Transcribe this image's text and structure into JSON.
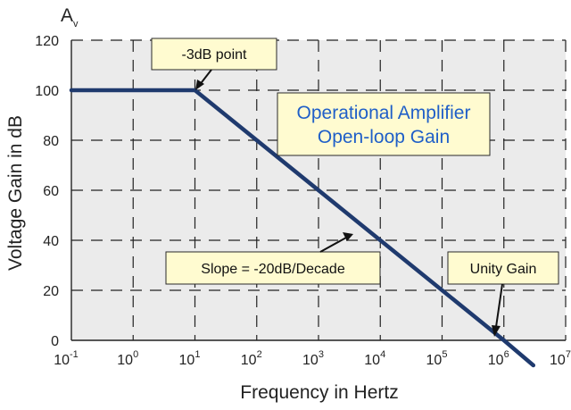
{
  "chart_data": {
    "type": "line",
    "title": "",
    "xlabel": "Frequency in Hertz",
    "ylabel": "Voltage Gain in dB",
    "y_symbol": "A",
    "y_symbol_sub": "v",
    "xscale": "log",
    "x_ticks": [
      {
        "base": "10",
        "exp": "-1"
      },
      {
        "base": "10",
        "exp": "0"
      },
      {
        "base": "10",
        "exp": "1"
      },
      {
        "base": "10",
        "exp": "2"
      },
      {
        "base": "10",
        "exp": "3"
      },
      {
        "base": "10",
        "exp": "4"
      },
      {
        "base": "10",
        "exp": "5"
      },
      {
        "base": "10",
        "exp": "6"
      },
      {
        "base": "10",
        "exp": "7"
      }
    ],
    "y_ticks": [
      "0",
      "20",
      "40",
      "60",
      "80",
      "100",
      "120"
    ],
    "xlim": [
      0.1,
      10000000
    ],
    "ylim": [
      0,
      120
    ],
    "grid": true,
    "grid_style": "dashed",
    "series": [
      {
        "color": "#1f3a6e",
        "x": [
          0.1,
          10,
          1000000,
          3000000
        ],
        "y": [
          100,
          100,
          0,
          -10
        ]
      }
    ],
    "annotations": [
      {
        "text": "-3dB point",
        "target_x": 10,
        "target_y": 100
      },
      {
        "text": "Slope = -20dB/Decade",
        "target_x": 10000,
        "target_y": 40
      },
      {
        "text": "Unity Gain",
        "target_x": 1000000,
        "target_y": 0
      }
    ],
    "title_box": {
      "lines": [
        "Operational Amplifier",
        "Open-loop Gain"
      ],
      "color": "#1f5fc8"
    },
    "colors": {
      "box_fill": "#fffbd0",
      "box_border": "#2a2a2a",
      "grid": "#222222",
      "line": "#1f3a6e"
    }
  }
}
